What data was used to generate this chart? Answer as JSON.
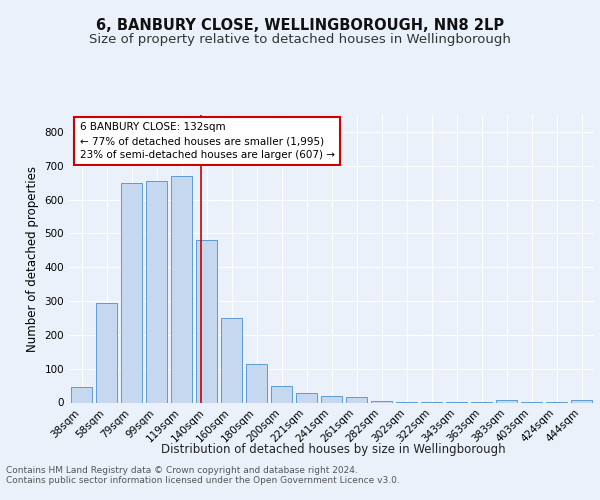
{
  "title1": "6, BANBURY CLOSE, WELLINGBOROUGH, NN8 2LP",
  "title2": "Size of property relative to detached houses in Wellingborough",
  "xlabel": "Distribution of detached houses by size in Wellingborough",
  "ylabel": "Number of detached properties",
  "categories": [
    "38sqm",
    "58sqm",
    "79sqm",
    "99sqm",
    "119sqm",
    "140sqm",
    "160sqm",
    "180sqm",
    "200sqm",
    "221sqm",
    "241sqm",
    "261sqm",
    "282sqm",
    "302sqm",
    "322sqm",
    "343sqm",
    "363sqm",
    "383sqm",
    "403sqm",
    "424sqm",
    "444sqm"
  ],
  "values": [
    47,
    295,
    650,
    655,
    670,
    480,
    250,
    113,
    50,
    27,
    18,
    17,
    4,
    2,
    1,
    1,
    1,
    8,
    1,
    1,
    7
  ],
  "bar_color": "#c5d8f0",
  "bar_edge_color": "#5b9bd5",
  "vline_x": 4.77,
  "vline_color": "#cc0000",
  "annotation_text": "6 BANBURY CLOSE: 132sqm\n← 77% of detached houses are smaller (1,995)\n23% of semi-detached houses are larger (607) →",
  "annotation_box_color": "#cc0000",
  "ylim": [
    0,
    850
  ],
  "yticks": [
    0,
    100,
    200,
    300,
    400,
    500,
    600,
    700,
    800
  ],
  "footer_line1": "Contains HM Land Registry data © Crown copyright and database right 2024.",
  "footer_line2": "Contains public sector information licensed under the Open Government Licence v3.0.",
  "bg_color": "#eaf1fb",
  "plot_bg_color": "#eaf1fb",
  "grid_color": "#ffffff",
  "title1_fontsize": 10.5,
  "title2_fontsize": 9.5,
  "axis_label_fontsize": 8.5,
  "tick_fontsize": 7.5,
  "annotation_fontsize": 7.5,
  "footer_fontsize": 6.5
}
